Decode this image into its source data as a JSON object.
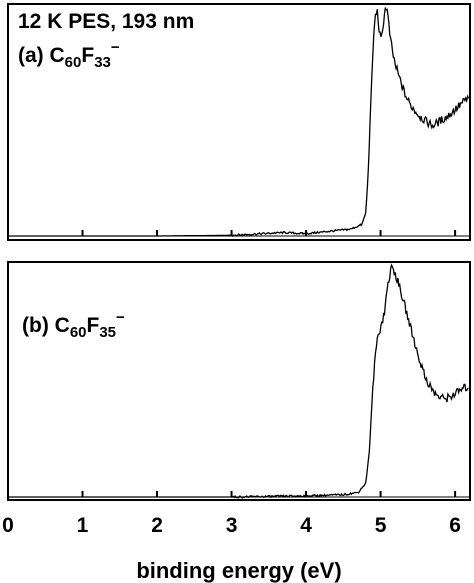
{
  "chart_data": [
    {
      "type": "line",
      "panel_id": "a",
      "title": "12 K PES, 193 nm",
      "label_prefix": "(a) C",
      "label_sub1": "60",
      "label_mid": "F",
      "label_sub2": "33",
      "label_sup": "−",
      "xlabel": "binding energy (eV)",
      "ylabel": "",
      "xlim": [
        0,
        6.2
      ],
      "ylim": [
        0,
        1.0
      ],
      "color": "#000000",
      "x": [
        0.0,
        1.0,
        2.0,
        3.0,
        3.4,
        3.7,
        4.0,
        4.3,
        4.6,
        4.75,
        4.8,
        4.83,
        4.86,
        4.89,
        4.92,
        4.95,
        4.98,
        5.0,
        5.02,
        5.05,
        5.08,
        5.1,
        5.13,
        5.16,
        5.2,
        5.25,
        5.3,
        5.35,
        5.4,
        5.5,
        5.6,
        5.7,
        5.8,
        5.9,
        6.0,
        6.1,
        6.18
      ],
      "y": [
        0.0,
        0.0,
        0.0,
        0.003,
        0.01,
        0.015,
        0.01,
        0.02,
        0.03,
        0.05,
        0.1,
        0.25,
        0.5,
        0.75,
        0.93,
        0.99,
        0.9,
        0.85,
        0.87,
        0.97,
        1.0,
        0.95,
        0.86,
        0.8,
        0.74,
        0.69,
        0.64,
        0.6,
        0.57,
        0.53,
        0.5,
        0.48,
        0.5,
        0.52,
        0.55,
        0.58,
        0.6
      ]
    },
    {
      "type": "line",
      "panel_id": "b",
      "label_prefix": "(b) C",
      "label_sub1": "60",
      "label_mid": "F",
      "label_sub2": "35",
      "label_sup": "−",
      "xlabel": "binding energy (eV)",
      "ylabel": "",
      "xlim": [
        0,
        6.2
      ],
      "ylim": [
        0,
        1.0
      ],
      "x_ticks": [
        "0",
        "1",
        "2",
        "3",
        "4",
        "5",
        "6"
      ],
      "x_tick_values": [
        0,
        1,
        2,
        3,
        4,
        5,
        6
      ],
      "color": "#000000",
      "x": [
        0.0,
        1.0,
        2.0,
        3.0,
        4.0,
        4.5,
        4.7,
        4.8,
        4.85,
        4.9,
        4.95,
        5.0,
        5.05,
        5.1,
        5.15,
        5.2,
        5.3,
        5.4,
        5.5,
        5.6,
        5.7,
        5.8,
        5.9,
        6.0,
        6.1,
        6.18
      ],
      "y": [
        0.0,
        0.0,
        0.0,
        0.0,
        0.005,
        0.01,
        0.02,
        0.06,
        0.2,
        0.5,
        0.68,
        0.74,
        0.8,
        0.93,
        1.0,
        0.97,
        0.86,
        0.74,
        0.62,
        0.52,
        0.46,
        0.43,
        0.43,
        0.45,
        0.47,
        0.48
      ]
    }
  ]
}
